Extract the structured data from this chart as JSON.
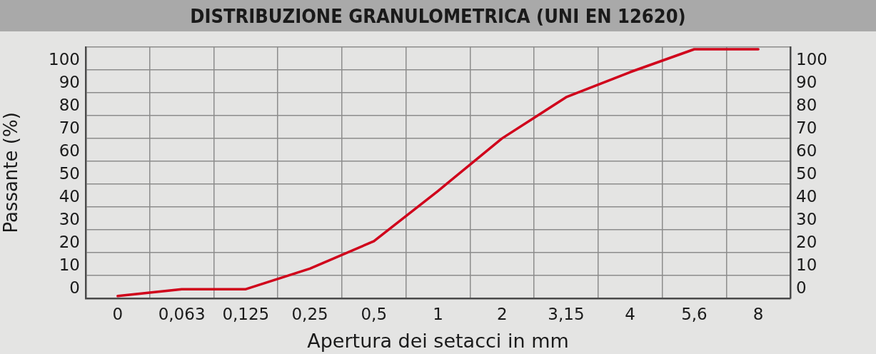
{
  "chart_data": {
    "type": "line",
    "title": "DISTRIBUZIONE GRANULOMETRICA (UNI EN 12620)",
    "xlabel": "Apertura dei setacci in mm",
    "ylabel": "Passante (%)",
    "categories": [
      "0",
      "0,063",
      "0,125",
      "0,25",
      "0,5",
      "1",
      "2",
      "3,15",
      "4",
      "5,6",
      "8"
    ],
    "series": [
      {
        "color": "#d0021b",
        "values": [
          1,
          4,
          4,
          13,
          25,
          47,
          70,
          88,
          99,
          109,
          109
        ]
      }
    ],
    "ylim": [
      0,
      110
    ],
    "yticks": [
      0,
      10,
      20,
      30,
      40,
      50,
      60,
      70,
      80,
      90,
      100,
      {
        "value": 110,
        "label": null
      }
    ],
    "y2lim": [
      0,
      110
    ],
    "y2ticks": [
      0,
      10,
      20,
      30,
      40,
      50,
      60,
      70,
      80,
      90,
      100
    ],
    "grid": true,
    "legend": false,
    "marker": "none",
    "line_style": "solid"
  }
}
